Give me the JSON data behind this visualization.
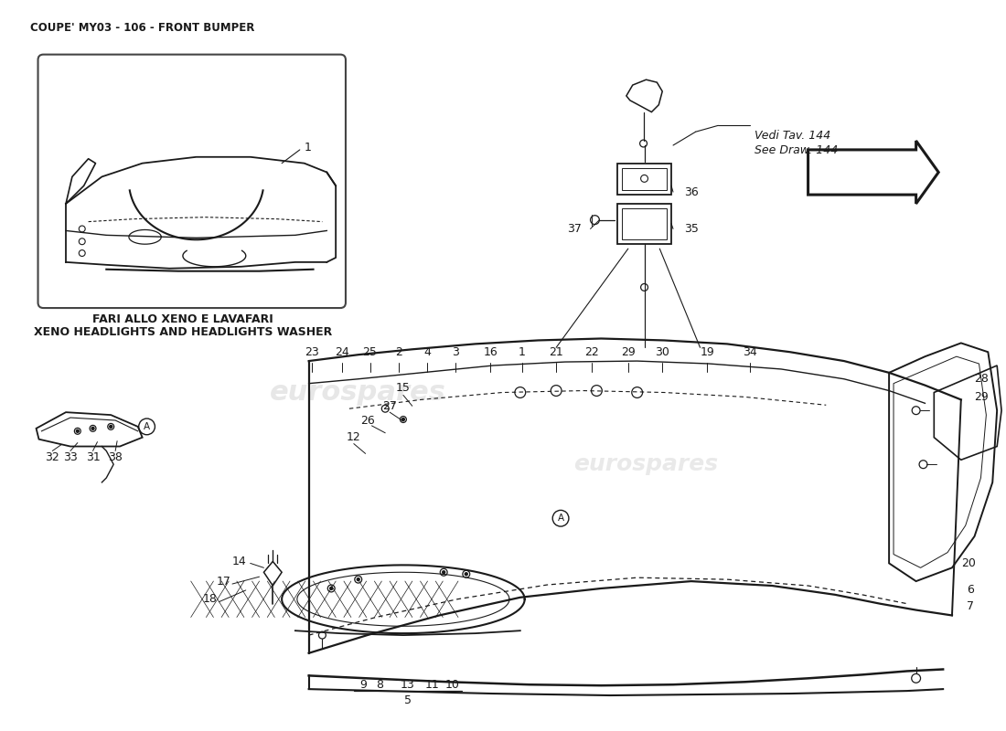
{
  "title": "COUPE' MY03 - 106 - FRONT BUMPER",
  "background_color": "#ffffff",
  "line_color": "#1a1a1a",
  "text_color": "#1a1a1a",
  "watermark_color": "#d0d0d0",
  "watermark_text": "eurospares",
  "inset_label_it": "FARI ALLO XENO E LAVAFARI",
  "inset_label_en": "XENO HEADLIGHTS AND HEADLIGHTS WASHER",
  "vedi_line1": "Vedi Tav. 144",
  "vedi_line2": "See Draw. 144"
}
